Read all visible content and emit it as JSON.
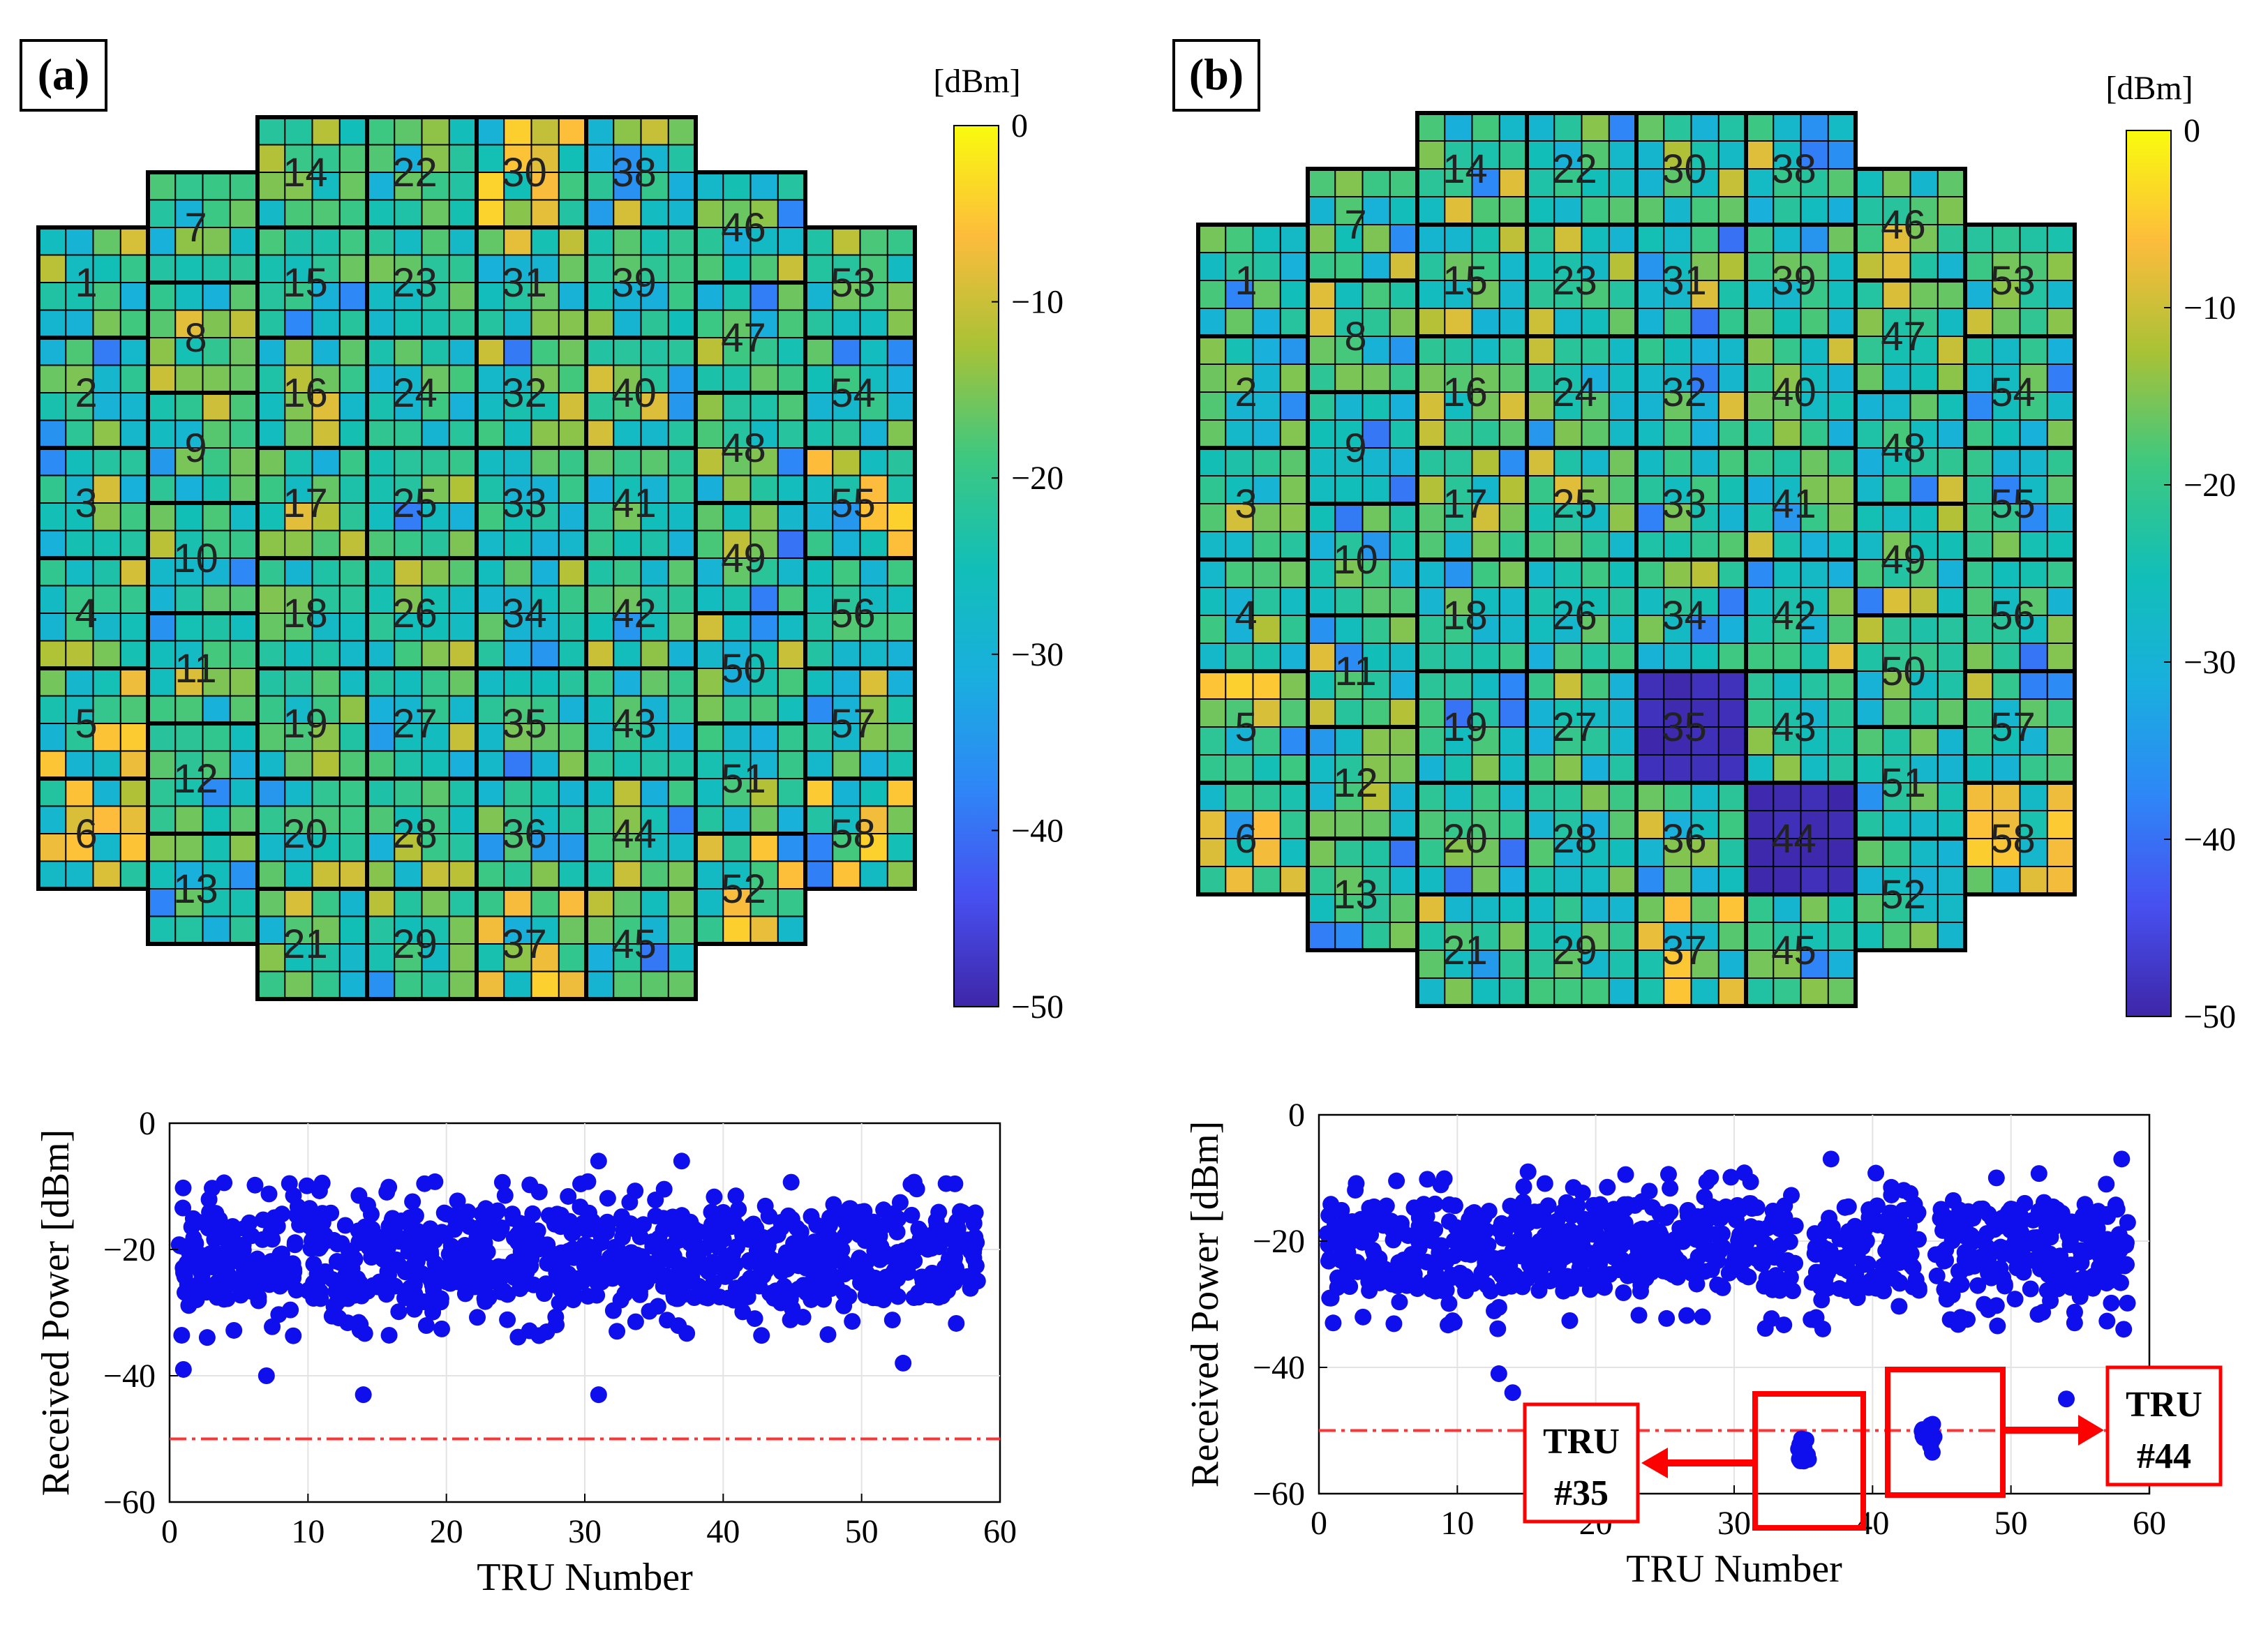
{
  "panels": [
    {
      "label": "(a)",
      "colorbar": {
        "unit": "[dBm]",
        "ticks": [
          "0",
          "−10",
          "−20",
          "−30",
          "−40",
          "−50"
        ]
      },
      "wafer": {
        "tru_labels": [
          "1",
          "2",
          "3",
          "4",
          "5",
          "6",
          "7",
          "8",
          "9",
          "10",
          "11",
          "12",
          "13",
          "14",
          "15",
          "16",
          "17",
          "18",
          "19",
          "20",
          "21",
          "22",
          "23",
          "24",
          "25",
          "26",
          "27",
          "28",
          "29",
          "30",
          "31",
          "32",
          "33",
          "34",
          "35",
          "36",
          "37",
          "38",
          "39",
          "40",
          "41",
          "42",
          "43",
          "44",
          "45",
          "46",
          "47",
          "48",
          "49",
          "50",
          "51",
          "52",
          "53",
          "54",
          "55",
          "56",
          "57",
          "58"
        ]
      },
      "scatter": {
        "ylabel": "Received Power [dBm]",
        "xlabel": "TRU Number",
        "xticks": [
          "0",
          "10",
          "20",
          "30",
          "40",
          "50",
          "60"
        ],
        "yticks": [
          "0",
          "−20",
          "−40",
          "−60"
        ]
      }
    },
    {
      "label": "(b)",
      "colorbar": {
        "unit": "[dBm]",
        "ticks": [
          "0",
          "−10",
          "−20",
          "−30",
          "−40",
          "−50"
        ]
      },
      "wafer": {
        "tru_labels": [
          "1",
          "2",
          "3",
          "4",
          "5",
          "6",
          "7",
          "8",
          "9",
          "10",
          "11",
          "12",
          "13",
          "14",
          "15",
          "16",
          "17",
          "18",
          "19",
          "20",
          "21",
          "22",
          "23",
          "24",
          "25",
          "26",
          "27",
          "28",
          "29",
          "30",
          "31",
          "32",
          "33",
          "34",
          "35",
          "36",
          "37",
          "38",
          "39",
          "40",
          "41",
          "42",
          "43",
          "44",
          "45",
          "46",
          "47",
          "48",
          "49",
          "50",
          "51",
          "52",
          "53",
          "54",
          "55",
          "56",
          "57",
          "58"
        ]
      },
      "scatter": {
        "ylabel": "Received Power [dBm]",
        "xlabel": "TRU Number",
        "xticks": [
          "0",
          "10",
          "20",
          "30",
          "40",
          "50",
          "60"
        ],
        "yticks": [
          "0",
          "−20",
          "−40",
          "−60"
        ]
      },
      "annotations": [
        {
          "line1": "TRU",
          "line2": "#35"
        },
        {
          "line1": "TRU",
          "line2": "#44"
        }
      ]
    }
  ],
  "chart_data": [
    {
      "type": "heatmap",
      "title": "(a)",
      "description_units": "dBm",
      "color_range": [
        -50,
        0
      ],
      "colormap": "parula",
      "grid": "58 TRUs, each 4x4 tiles",
      "typical_range_dbm": [
        -35,
        -5
      ],
      "hot_trus": [
        5,
        6,
        30,
        37,
        52,
        55,
        58
      ]
    },
    {
      "type": "heatmap",
      "title": "(b)",
      "description_units": "dBm",
      "color_range": [
        -50,
        0
      ],
      "colormap": "parula",
      "grid": "58 TRUs, each 4x4 tiles",
      "typical_range_dbm": [
        -35,
        -5
      ],
      "hot_trus": [
        5,
        6,
        37,
        58
      ],
      "failed_trus": [
        35,
        44
      ],
      "failed_value_dbm": -50
    },
    {
      "type": "scatter",
      "title": "(a)",
      "xlabel": "TRU Number",
      "ylabel": "Received Power [dBm]",
      "xlim": [
        0,
        60
      ],
      "ylim": [
        -60,
        0
      ],
      "grid": true,
      "threshold_dbm": -50,
      "per_tru_range": {
        "min": -43,
        "max": -6
      },
      "notable_points": [
        {
          "x": 1,
          "y": -39
        },
        {
          "x": 7,
          "y": -40
        },
        {
          "x": 14,
          "y": -43
        },
        {
          "x": 31,
          "y": -43
        },
        {
          "x": 31,
          "y": -6
        },
        {
          "x": 37,
          "y": -6
        },
        {
          "x": 53,
          "y": -38
        }
      ]
    },
    {
      "type": "scatter",
      "title": "(b)",
      "xlabel": "TRU Number",
      "ylabel": "Received Power [dBm]",
      "xlim": [
        0,
        60
      ],
      "ylim": [
        -60,
        0
      ],
      "grid": true,
      "threshold_dbm": -50,
      "failed_points": [
        {
          "x": 35,
          "y_range": [
            -55,
            -51
          ]
        },
        {
          "x": 44,
          "y_range": [
            -54,
            -49
          ]
        }
      ],
      "notable_points": [
        {
          "x": 13,
          "y": -41
        },
        {
          "x": 14,
          "y": -44
        },
        {
          "x": 37,
          "y": -7
        },
        {
          "x": 54,
          "y": -45
        },
        {
          "x": 58,
          "y": -7
        }
      ]
    }
  ]
}
